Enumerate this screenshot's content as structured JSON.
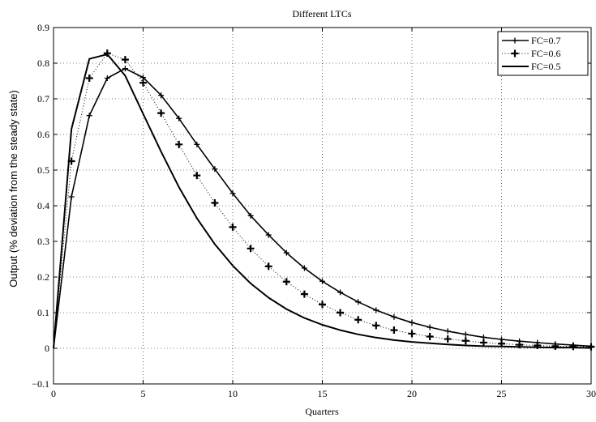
{
  "chart_data": {
    "type": "line",
    "title": "Different LTCs",
    "xlabel": "Quarters",
    "ylabel": "Output  (% deviation from the steady state)",
    "xlim": [
      0,
      30
    ],
    "ylim": [
      -0.1,
      0.9
    ],
    "xticks": [
      0,
      5,
      10,
      15,
      20,
      25,
      30
    ],
    "yticks": [
      -0.1,
      0,
      0.1,
      0.2,
      0.3,
      0.4,
      0.5,
      0.6,
      0.7,
      0.8,
      0.9
    ],
    "xtick_labels": [
      "0",
      "5",
      "10",
      "15",
      "20",
      "25",
      "30"
    ],
    "ytick_labels": [
      "−0.1",
      "0",
      "0.1",
      "0.2",
      "0.3",
      "0.4",
      "0.5",
      "0.6",
      "0.7",
      "0.8",
      "0.9"
    ],
    "grid": true,
    "legend_position": "top-right",
    "x": [
      0,
      1,
      2,
      3,
      4,
      5,
      6,
      7,
      8,
      9,
      10,
      11,
      12,
      13,
      14,
      15,
      16,
      17,
      18,
      19,
      20,
      21,
      22,
      23,
      24,
      25,
      26,
      27,
      28,
      29,
      30
    ],
    "series": [
      {
        "name": "FC=0.7",
        "style": "solid-plus",
        "values": [
          0,
          0.425,
          0.653,
          0.758,
          0.785,
          0.76,
          0.71,
          0.645,
          0.572,
          0.503,
          0.435,
          0.372,
          0.318,
          0.268,
          0.225,
          0.188,
          0.157,
          0.13,
          0.107,
          0.088,
          0.072,
          0.059,
          0.048,
          0.039,
          0.031,
          0.025,
          0.02,
          0.016,
          0.012,
          0.009,
          0.006
        ]
      },
      {
        "name": "FC=0.6",
        "style": "dotted-plus",
        "values": [
          0,
          0.525,
          0.758,
          0.828,
          0.81,
          0.745,
          0.66,
          0.572,
          0.485,
          0.408,
          0.34,
          0.28,
          0.23,
          0.187,
          0.152,
          0.123,
          0.1,
          0.08,
          0.064,
          0.051,
          0.041,
          0.033,
          0.026,
          0.021,
          0.016,
          0.013,
          0.01,
          0.008,
          0.006,
          0.005,
          0.004
        ]
      },
      {
        "name": "FC=0.5",
        "style": "solid",
        "values": [
          0,
          0.615,
          0.812,
          0.825,
          0.765,
          0.658,
          0.552,
          0.452,
          0.365,
          0.292,
          0.232,
          0.182,
          0.142,
          0.11,
          0.085,
          0.066,
          0.051,
          0.039,
          0.03,
          0.023,
          0.018,
          0.014,
          0.011,
          0.008,
          0.006,
          0.005,
          0.004,
          0.003,
          0.002,
          0.002,
          0.001
        ]
      }
    ]
  }
}
